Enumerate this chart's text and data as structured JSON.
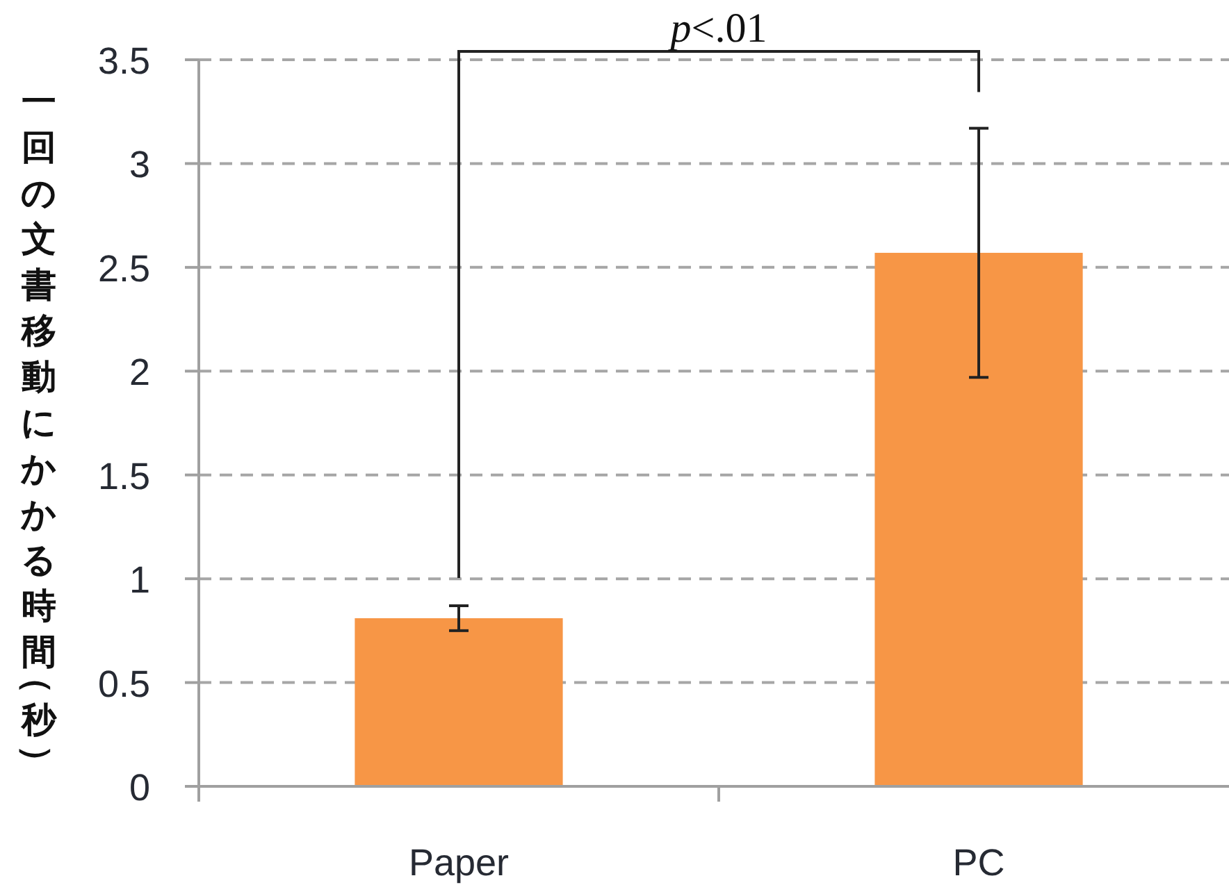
{
  "chart_data": {
    "type": "bar",
    "ylabel": "一回の文書移動にかかる時間（秒）",
    "categories": [
      "Paper",
      "PC"
    ],
    "values": [
      0.81,
      2.57
    ],
    "errors": [
      0.06,
      0.6
    ],
    "color": "#f79646",
    "ylim": [
      0,
      3.5
    ],
    "yticks": [
      0,
      0.5,
      1,
      1.5,
      2,
      2.5,
      3,
      3.5
    ],
    "grid": "y",
    "annotations": [
      "*p*<.01"
    ]
  }
}
